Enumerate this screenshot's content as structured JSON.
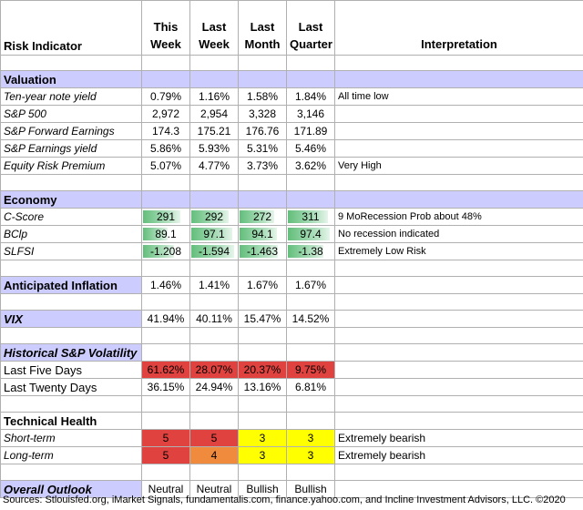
{
  "header": {
    "indicator": "Risk Indicator",
    "cols": [
      {
        "l1": "This",
        "l2": "Week"
      },
      {
        "l1": "Last",
        "l2": "Week"
      },
      {
        "l1": "Last",
        "l2": "Month"
      },
      {
        "l1": "Last",
        "l2": "Quarter"
      }
    ],
    "interpretation": "Interpretation"
  },
  "valuation": {
    "title": "Valuation",
    "rows": [
      {
        "label": "Ten-year note yield",
        "v": [
          "0.79%",
          "1.16%",
          "1.58%",
          "1.84%"
        ],
        "interp": "All time low"
      },
      {
        "label": "S&P 500",
        "v": [
          "2,972",
          "2,954",
          "3,328",
          "3,146"
        ],
        "interp": ""
      },
      {
        "label": "S&P Forward Earnings",
        "v": [
          "174.3",
          "175.21",
          "176.76",
          "171.89"
        ],
        "interp": ""
      },
      {
        "label": "S&P Earnings yield",
        "v": [
          "5.86%",
          "5.93%",
          "5.31%",
          "5.46%"
        ],
        "interp": ""
      },
      {
        "label": "Equity Risk Premium",
        "v": [
          "5.07%",
          "4.77%",
          "3.73%",
          "3.62%"
        ],
        "interp": "Very High"
      }
    ]
  },
  "economy": {
    "title": "Economy",
    "rows": [
      {
        "label": "C-Score",
        "v": [
          "291",
          "292",
          "272",
          "311"
        ],
        "fill": [
          0.82,
          0.82,
          0.77,
          0.88
        ],
        "interp": "9 MoRecession Prob about 48%"
      },
      {
        "label": "BClp",
        "v": [
          "89.1",
          "97.1",
          "94.1",
          "97.4"
        ],
        "fill": [
          0.55,
          0.9,
          0.82,
          0.92
        ],
        "interp": "No recession indicated"
      },
      {
        "label": "SLFSI",
        "v": [
          "-1.208",
          "-1.594",
          "-1.463",
          "-1.38"
        ],
        "fill": [
          0.7,
          0.95,
          0.85,
          0.78
        ],
        "interp": "Extremely Low Risk"
      }
    ]
  },
  "inflation": {
    "label": "Anticipated Inflation",
    "v": [
      "1.46%",
      "1.41%",
      "1.67%",
      "1.67%"
    ]
  },
  "vix": {
    "label": "VIX",
    "v": [
      "41.94%",
      "40.11%",
      "15.47%",
      "14.52%"
    ]
  },
  "volatility": {
    "title": "Historical  S&P Volatility",
    "rows": [
      {
        "label": "Last Five Days",
        "v": [
          "61.62%",
          "28.07%",
          "20.37%",
          "9.75%"
        ],
        "colors": [
          "#e0433f",
          "#e0433f",
          "#e0433f",
          "#e0433f"
        ]
      },
      {
        "label": "Last Twenty Days",
        "v": [
          "36.15%",
          "24.94%",
          "13.16%",
          "6.81%"
        ],
        "colors": [
          "",
          "",
          "",
          ""
        ]
      }
    ]
  },
  "technical": {
    "title": "Technical Health",
    "rows": [
      {
        "label": "Short-term",
        "v": [
          "5",
          "5",
          "3",
          "3"
        ],
        "colors": [
          "#e0433f",
          "#e0433f",
          "#ffff00",
          "#ffff00"
        ],
        "interp": "Extremely bearish"
      },
      {
        "label": "Long-term",
        "v": [
          "5",
          "4",
          "3",
          "3"
        ],
        "colors": [
          "#e0433f",
          "#f08a3c",
          "#ffff00",
          "#ffff00"
        ],
        "interp": "Extremely bearish"
      }
    ]
  },
  "outlook": {
    "label": "Overall Outlook",
    "v": [
      "Neutral",
      "Neutral",
      "Bullish",
      "Bullish"
    ]
  },
  "source": "Sources: Stlouisfed.org,  iMarket Signals, fundamentalis.com, finance.yahoo.com, and Incline Investment Advisors, LLC. ©2020"
}
